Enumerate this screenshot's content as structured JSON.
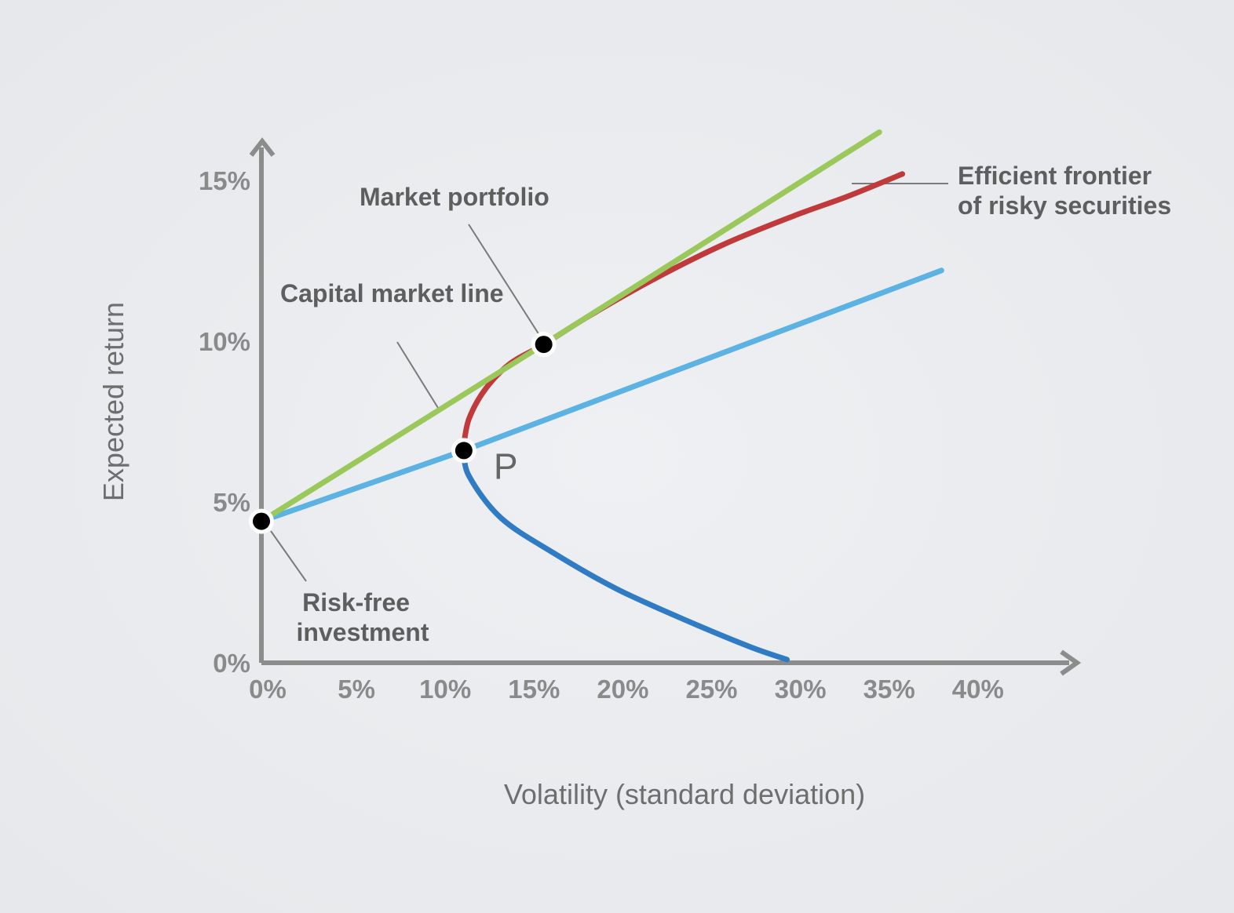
{
  "chart_data": {
    "type": "line",
    "title": "",
    "xlabel": "Volatility (standard deviation)",
    "ylabel": "Expected return",
    "xlim": [
      0,
      46
    ],
    "ylim": [
      0,
      16
    ],
    "x_ticks": [
      {
        "value": 0,
        "label": "0%"
      },
      {
        "value": 5,
        "label": "5%"
      },
      {
        "value": 10,
        "label": "10%"
      },
      {
        "value": 15,
        "label": "15%"
      },
      {
        "value": 20,
        "label": "20%"
      },
      {
        "value": 25,
        "label": "25%"
      },
      {
        "value": 30,
        "label": "30%"
      },
      {
        "value": 35,
        "label": "35%"
      },
      {
        "value": 40,
        "label": "40%"
      }
    ],
    "y_ticks": [
      {
        "value": 0,
        "label": "0%"
      },
      {
        "value": 5,
        "label": "5%"
      },
      {
        "value": 10,
        "label": "10%"
      },
      {
        "value": 15,
        "label": "15%"
      }
    ],
    "grid": false,
    "series": [
      {
        "name": "Capital market line",
        "color": "#9bc85a",
        "points": [
          [
            0,
            4.4
          ],
          [
            15.9,
            9.9
          ],
          [
            34.8,
            16.5
          ]
        ]
      },
      {
        "name": "Efficient frontier of risky securities",
        "color": "#c0393b",
        "points": [
          [
            11.4,
            6.8
          ],
          [
            11.7,
            7.6
          ],
          [
            12.6,
            8.5
          ],
          [
            14.0,
            9.3
          ],
          [
            15.9,
            9.9
          ],
          [
            18.5,
            10.8
          ],
          [
            22.0,
            11.9
          ],
          [
            26.0,
            13.0
          ],
          [
            30.0,
            13.9
          ],
          [
            33.0,
            14.5
          ],
          [
            36.1,
            15.2
          ]
        ]
      },
      {
        "name": "",
        "color": "#2f7bc4",
        "points": [
          [
            11.4,
            6.6
          ],
          [
            11.7,
            5.8
          ],
          [
            13.5,
            4.5
          ],
          [
            16.5,
            3.4
          ],
          [
            20.0,
            2.3
          ],
          [
            24.0,
            1.3
          ],
          [
            27.5,
            0.5
          ],
          [
            29.6,
            0.1
          ]
        ]
      },
      {
        "name": "",
        "color": "#5cb3e3",
        "points": [
          [
            0,
            4.4
          ],
          [
            11.4,
            6.6
          ],
          [
            38.3,
            12.2
          ]
        ]
      }
    ],
    "points": [
      {
        "name": "Risk-free investment",
        "x": 0,
        "y": 4.4,
        "label": ""
      },
      {
        "name": "P",
        "x": 11.4,
        "y": 6.6,
        "label": "P"
      },
      {
        "name": "Market portfolio",
        "x": 15.9,
        "y": 9.9,
        "label": ""
      }
    ],
    "annotations": [
      {
        "name": "market-portfolio",
        "lines": [
          "Market portfolio"
        ]
      },
      {
        "name": "capital-market-line",
        "lines": [
          "Capital market line"
        ]
      },
      {
        "name": "efficient-frontier",
        "lines": [
          "Efficient frontier",
          "of risky securities"
        ]
      },
      {
        "name": "risk-free",
        "lines": [
          "Risk-free",
          "investment"
        ]
      }
    ]
  }
}
